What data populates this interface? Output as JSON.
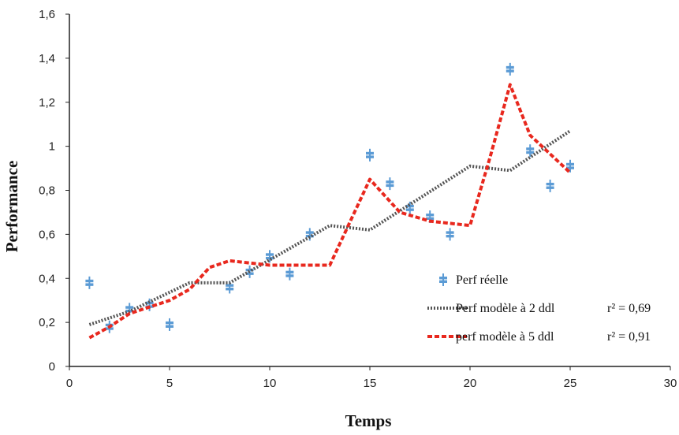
{
  "chart_data": {
    "type": "scatter",
    "xlabel": "Temps",
    "ylabel": "Performance",
    "xlim": [
      0,
      30
    ],
    "ylim": [
      0,
      1.6
    ],
    "xticks": [
      "0",
      "5",
      "10",
      "15",
      "20",
      "25",
      "30"
    ],
    "yticks": [
      "0",
      "0,2",
      "0,4",
      "0,6",
      "0,8",
      "1",
      "1,2",
      "1,4",
      "1,6"
    ],
    "grid": false,
    "legend_position": "bottom-right",
    "series": [
      {
        "name": "Perf réelle",
        "kind": "markers",
        "color": "#5b9bd5",
        "x": [
          1,
          2,
          3,
          4,
          5,
          8,
          9,
          10,
          11,
          12,
          15,
          16,
          17,
          18,
          19,
          22,
          23,
          24,
          25
        ],
        "y": [
          0.38,
          0.18,
          0.26,
          0.28,
          0.19,
          0.36,
          0.43,
          0.5,
          0.42,
          0.6,
          0.96,
          0.83,
          0.72,
          0.68,
          0.6,
          1.35,
          0.98,
          0.82,
          0.91
        ]
      },
      {
        "name": "Perf modèle à 2 ddl",
        "kind": "dotted-line",
        "color": "#555555",
        "annotation": "r² = 0,69",
        "x": [
          1,
          3,
          6,
          8,
          13,
          15,
          20,
          22,
          25
        ],
        "y": [
          0.19,
          0.25,
          0.38,
          0.38,
          0.64,
          0.62,
          0.91,
          0.89,
          1.07
        ]
      },
      {
        "name": "perf modèle à 5 ddl",
        "kind": "dashed-line",
        "color": "#e8281e",
        "annotation": "r² = 0,91",
        "x": [
          1,
          2,
          3,
          5,
          6,
          7,
          8,
          10,
          13,
          15,
          16.5,
          18,
          20,
          21,
          22,
          23,
          25
        ],
        "y": [
          0.13,
          0.18,
          0.24,
          0.3,
          0.35,
          0.45,
          0.48,
          0.46,
          0.46,
          0.85,
          0.7,
          0.66,
          0.64,
          0.95,
          1.28,
          1.05,
          0.88
        ]
      }
    ]
  }
}
